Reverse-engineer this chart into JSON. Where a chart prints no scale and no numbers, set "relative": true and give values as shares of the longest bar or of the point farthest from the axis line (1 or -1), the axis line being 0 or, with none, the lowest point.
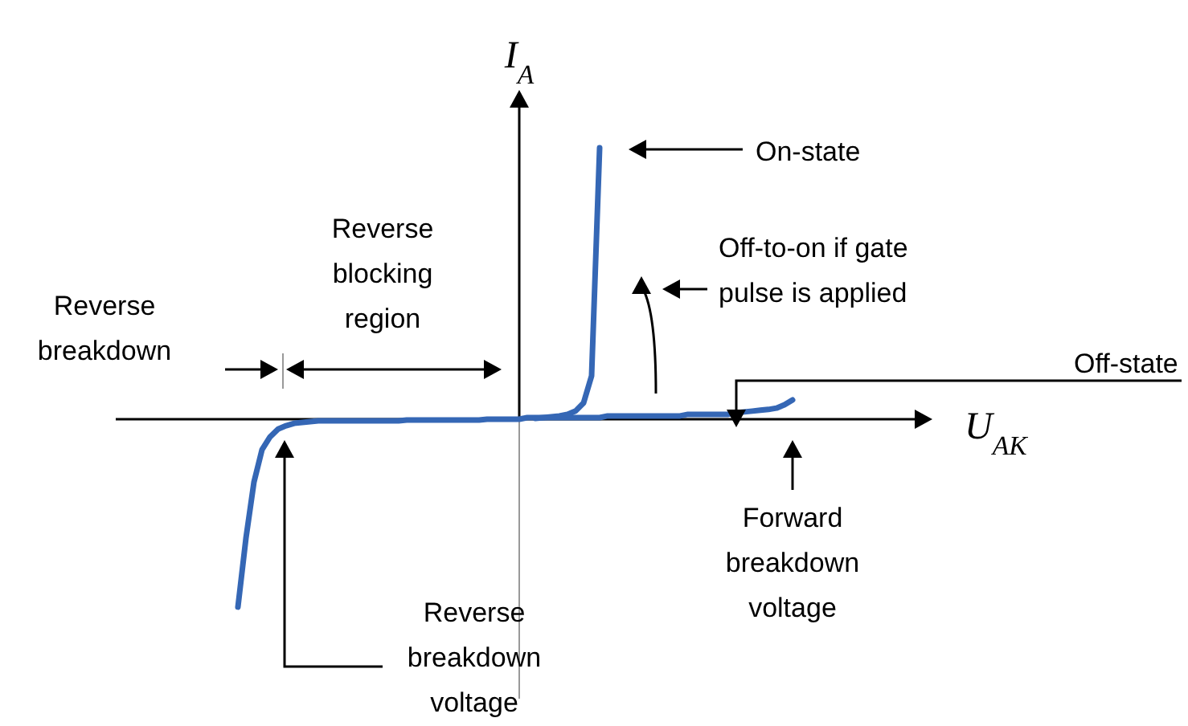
{
  "chart_data": {
    "type": "line",
    "relative": true,
    "xlabel": "U$_{AK}$",
    "ylabel": "I$_{A}$",
    "categories": [
      null,
      null,
      null,
      null,
      null,
      null,
      null,
      null,
      null,
      null,
      null,
      null,
      null,
      null,
      null,
      null,
      null,
      null,
      null,
      null,
      null,
      null,
      null,
      null,
      null,
      null,
      null,
      null,
      null,
      null,
      null,
      null,
      null,
      null,
      null,
      null,
      null,
      null,
      null,
      null,
      null,
      null,
      null,
      null,
      null,
      null,
      null,
      null,
      null,
      null,
      null,
      null,
      null,
      null,
      null,
      null,
      null,
      null,
      null,
      null,
      null,
      null,
      null,
      null,
      null,
      null,
      null,
      null,
      null,
      null,
      null
    ],
    "series": [
      {
        "color": "#3567b5",
        "values": [
          -0.692,
          -0.438,
          -0.231,
          -0.112,
          -0.065,
          -0.036,
          -0.024,
          -0.015,
          -0.012,
          -0.009,
          -0.006,
          -0.006,
          -0.006,
          -0.006,
          -0.006,
          -0.006,
          -0.006,
          -0.006,
          -0.006,
          -0.006,
          -0.006,
          -0.003,
          -0.003,
          -0.003,
          -0.003,
          -0.003,
          -0.003,
          -0.003,
          -0.003,
          -0.003,
          -0.003,
          0,
          0,
          0,
          0,
          0,
          0.006,
          0.006,
          0.006,
          0.006,
          0.006,
          0.006,
          0.006,
          0.006,
          0.006,
          0.006,
          0.012,
          0.012,
          0.012,
          0.012,
          0.012,
          0.012,
          0.012,
          0.012,
          0.012,
          0.012,
          0.018,
          0.018,
          0.018,
          0.018,
          0.018,
          0.018,
          0.024,
          0.027,
          0.03,
          0.033,
          0.036,
          0.041,
          0.053,
          0.071,
          null
        ]
      },
      {
        "color": "#3567b5",
        "values": [
          null,
          null,
          null,
          null,
          null,
          null,
          null,
          null,
          null,
          null,
          null,
          null,
          null,
          null,
          null,
          null,
          null,
          null,
          null,
          null,
          null,
          null,
          null,
          null,
          null,
          null,
          null,
          null,
          null,
          null,
          null,
          null,
          null,
          null,
          null,
          null,
          null,
          0.003,
          0.006,
          0.009,
          0.012,
          0.018,
          0.03,
          0.06,
          0.16,
          1,
          null,
          null,
          null,
          null,
          null,
          null,
          null,
          null,
          null,
          null,
          null,
          null,
          null,
          null,
          null,
          null,
          null,
          null,
          null,
          null,
          null,
          null,
          null,
          null,
          null
        ]
      }
    ],
    "annotations": [
      "On-state",
      "Off-to-on if gate pulse is applied",
      "Off-state",
      "Reverse blocking region",
      "Reverse breakdown",
      "Forward breakdown voltage",
      "Reverse breakdown voltage"
    ]
  }
}
